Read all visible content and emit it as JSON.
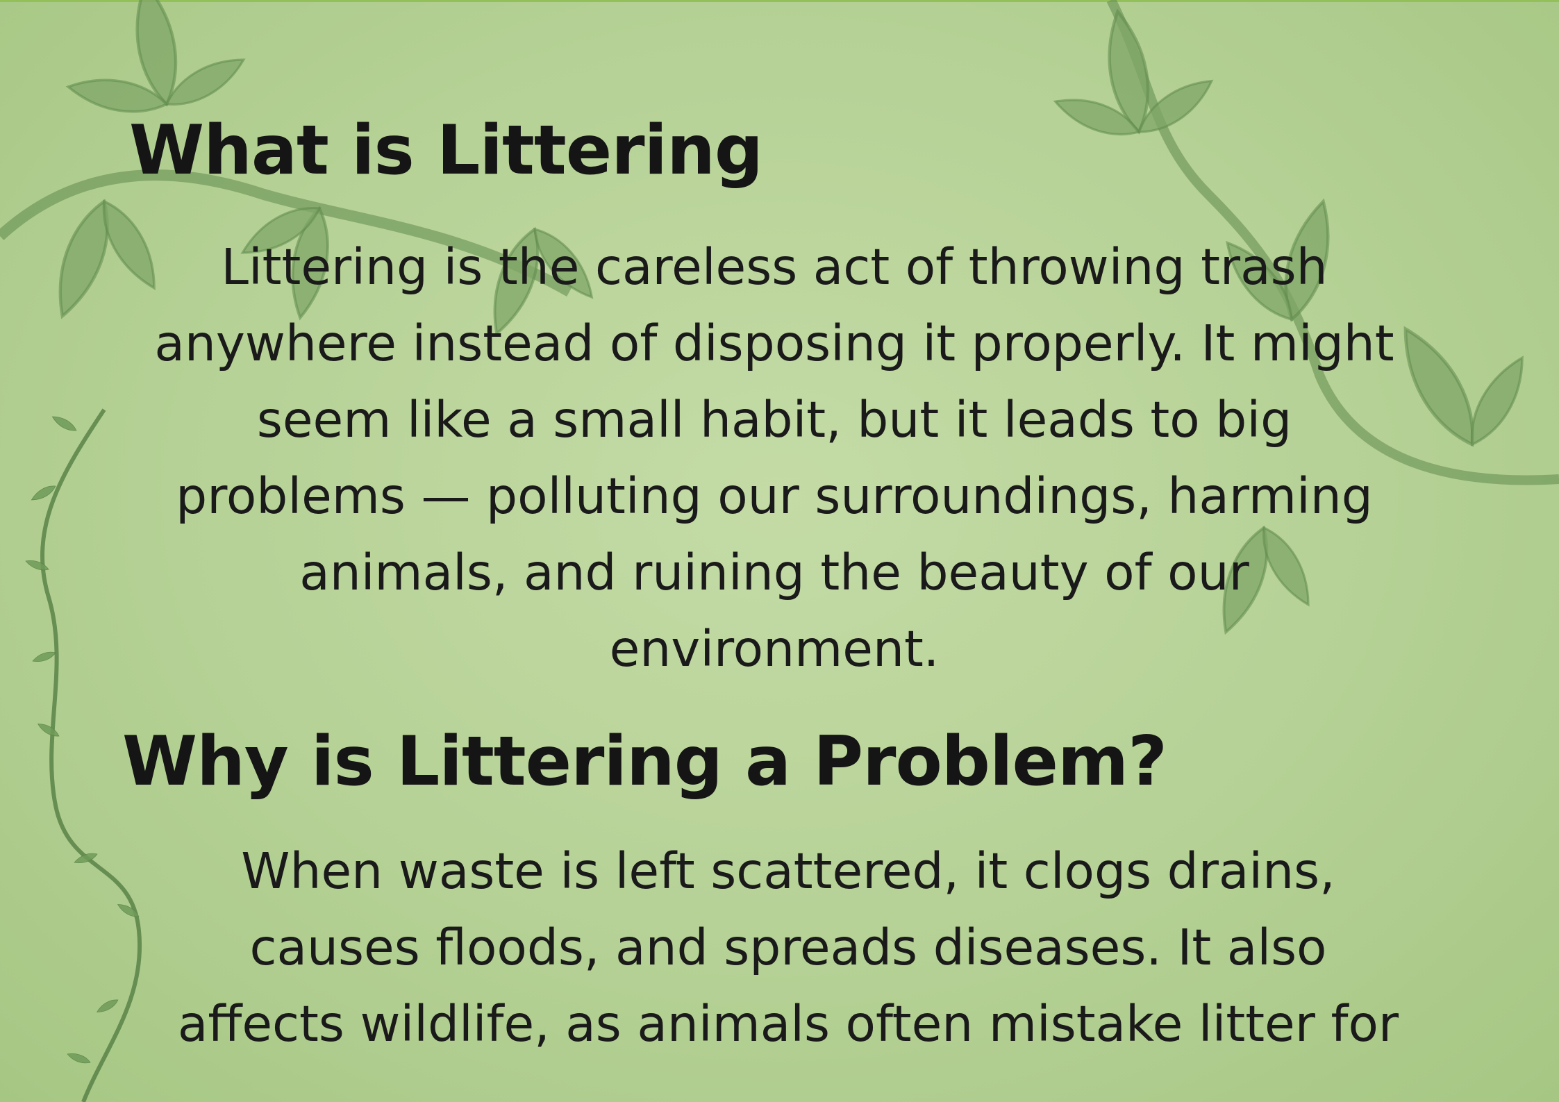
{
  "sections": [
    {
      "heading": "What is Littering",
      "lines": [
        "Littering is the careless act of throwing trash",
        "anywhere instead of disposing it properly. It might",
        "seem like a small habit, but it leads to big",
        "problems — polluting our surroundings, harming",
        "animals, and ruining the beauty of our",
        "environment."
      ]
    },
    {
      "heading": "Why is Littering a Problem?",
      "lines": [
        "When waste is left scattered, it clogs drains,",
        "causes floods, and spreads diseases. It also",
        "affects wildlife, as animals often mistake litter for"
      ]
    }
  ],
  "colors": {
    "background": "#b5d195",
    "leaf": "#7fa667",
    "leaf_dark": "#5f8a4c",
    "text": "#141414"
  },
  "decorations": [
    "leafy-vine-top-left",
    "leafy-vine-top-right",
    "small-vine-left-edge"
  ]
}
